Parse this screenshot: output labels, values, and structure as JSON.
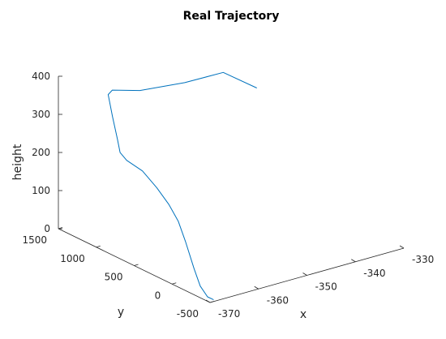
{
  "chart_data": {
    "type": "line3d",
    "title": "Real Trajectory",
    "xlabel": "x",
    "ylabel": "y",
    "zlabel": "height",
    "xlim": [
      -370,
      -330
    ],
    "ylim": [
      -500,
      1500
    ],
    "zlim": [
      0,
      400
    ],
    "xticks": [
      -370,
      -360,
      -350,
      -340,
      -330
    ],
    "yticks": [
      -500,
      0,
      500,
      1000,
      1500
    ],
    "zticks": [
      0,
      100,
      200,
      300,
      400
    ],
    "grid": false,
    "line_color": "#0072bd",
    "series": [
      {
        "points": [
          {
            "x": -368.8,
            "y": -470,
            "z": 0
          },
          {
            "x": -368.8,
            "y": -390,
            "z": 0
          },
          {
            "x": -368.9,
            "y": -300,
            "z": 20
          },
          {
            "x": -368.6,
            "y": -200,
            "z": 55
          },
          {
            "x": -367.2,
            "y": 0,
            "z": 100
          },
          {
            "x": -365.6,
            "y": 200,
            "z": 130
          },
          {
            "x": -364.4,
            "y": 400,
            "z": 150
          },
          {
            "x": -363.0,
            "y": 650,
            "z": 165
          },
          {
            "x": -361.4,
            "y": 940,
            "z": 175
          },
          {
            "x": -360.6,
            "y": 1200,
            "z": 175
          },
          {
            "x": -360.4,
            "y": 1300,
            "z": 185
          },
          {
            "x": -360.3,
            "y": 1340,
            "z": 215
          },
          {
            "x": -360.4,
            "y": 1400,
            "z": 270
          },
          {
            "x": -360.2,
            "y": 1470,
            "z": 320
          },
          {
            "x": -359.5,
            "y": 1460,
            "z": 330
          },
          {
            "x": -356.0,
            "y": 1320,
            "z": 330
          },
          {
            "x": -348.0,
            "y": 1240,
            "z": 330
          },
          {
            "x": -340.2,
            "y": 1230,
            "z": 330
          },
          {
            "x": -340.0,
            "y": 800,
            "z": 330
          }
        ]
      }
    ]
  }
}
